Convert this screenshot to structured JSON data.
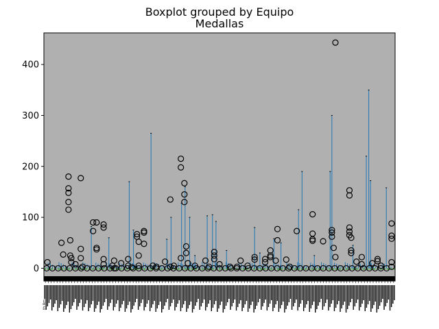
{
  "chart_data": {
    "type": "boxplot",
    "suptitle": "Boxplot grouped by Equipo",
    "title": "Medallas",
    "xlabel": "",
    "ylabel": "",
    "ylim": [
      -25,
      462
    ],
    "yticks": [
      0,
      100,
      200,
      300,
      400
    ],
    "grid": false,
    "background": "#b0b0b0",
    "box_color": "#1f77b4",
    "median_color": "#2ca02c",
    "flier_color": "#000000",
    "x_tick_labels_note": "hundreds of overlapping rotated team-name labels (illegible)",
    "legible_tick_fragment": "th Am",
    "whisker_peaks": [
      {
        "pos": 0.135,
        "value": 82
      },
      {
        "pos": 0.185,
        "value": 60
      },
      {
        "pos": 0.243,
        "value": 170
      },
      {
        "pos": 0.255,
        "value": 75
      },
      {
        "pos": 0.305,
        "value": 265
      },
      {
        "pos": 0.35,
        "value": 57
      },
      {
        "pos": 0.362,
        "value": 100
      },
      {
        "pos": 0.392,
        "value": 128
      },
      {
        "pos": 0.402,
        "value": 160
      },
      {
        "pos": 0.415,
        "value": 100
      },
      {
        "pos": 0.43,
        "value": 25
      },
      {
        "pos": 0.465,
        "value": 103
      },
      {
        "pos": 0.48,
        "value": 105
      },
      {
        "pos": 0.49,
        "value": 92
      },
      {
        "pos": 0.52,
        "value": 35
      },
      {
        "pos": 0.6,
        "value": 80
      },
      {
        "pos": 0.615,
        "value": 30
      },
      {
        "pos": 0.655,
        "value": 58
      },
      {
        "pos": 0.675,
        "value": 50
      },
      {
        "pos": 0.725,
        "value": 115
      },
      {
        "pos": 0.735,
        "value": 190
      },
      {
        "pos": 0.77,
        "value": 25
      },
      {
        "pos": 0.815,
        "value": 190
      },
      {
        "pos": 0.82,
        "value": 300
      },
      {
        "pos": 0.88,
        "value": 45
      },
      {
        "pos": 0.918,
        "value": 220
      },
      {
        "pos": 0.925,
        "value": 350
      },
      {
        "pos": 0.93,
        "value": 172
      },
      {
        "pos": 0.975,
        "value": 158
      }
    ],
    "outliers": [
      {
        "pos": 0.01,
        "value": 12
      },
      {
        "pos": 0.05,
        "value": 50
      },
      {
        "pos": 0.055,
        "value": 27
      },
      {
        "pos": 0.07,
        "value": 180
      },
      {
        "pos": 0.07,
        "value": 157
      },
      {
        "pos": 0.07,
        "value": 148
      },
      {
        "pos": 0.07,
        "value": 130
      },
      {
        "pos": 0.07,
        "value": 115
      },
      {
        "pos": 0.075,
        "value": 55
      },
      {
        "pos": 0.075,
        "value": 25
      },
      {
        "pos": 0.078,
        "value": 20
      },
      {
        "pos": 0.078,
        "value": 12
      },
      {
        "pos": 0.09,
        "value": 8
      },
      {
        "pos": 0.105,
        "value": 177
      },
      {
        "pos": 0.105,
        "value": 38
      },
      {
        "pos": 0.105,
        "value": 20
      },
      {
        "pos": 0.11,
        "value": 3
      },
      {
        "pos": 0.14,
        "value": 90
      },
      {
        "pos": 0.14,
        "value": 73
      },
      {
        "pos": 0.15,
        "value": 90
      },
      {
        "pos": 0.15,
        "value": 40
      },
      {
        "pos": 0.15,
        "value": 37
      },
      {
        "pos": 0.17,
        "value": 86
      },
      {
        "pos": 0.17,
        "value": 80
      },
      {
        "pos": 0.17,
        "value": 18
      },
      {
        "pos": 0.17,
        "value": 8
      },
      {
        "pos": 0.195,
        "value": 5
      },
      {
        "pos": 0.2,
        "value": 15
      },
      {
        "pos": 0.2,
        "value": 0
      },
      {
        "pos": 0.22,
        "value": 10
      },
      {
        "pos": 0.24,
        "value": 18
      },
      {
        "pos": 0.24,
        "value": 5
      },
      {
        "pos": 0.25,
        "value": 2
      },
      {
        "pos": 0.265,
        "value": 67
      },
      {
        "pos": 0.265,
        "value": 62
      },
      {
        "pos": 0.27,
        "value": 52
      },
      {
        "pos": 0.27,
        "value": 25
      },
      {
        "pos": 0.27,
        "value": 5
      },
      {
        "pos": 0.285,
        "value": 73
      },
      {
        "pos": 0.285,
        "value": 70
      },
      {
        "pos": 0.285,
        "value": 48
      },
      {
        "pos": 0.31,
        "value": 5
      },
      {
        "pos": 0.32,
        "value": 3
      },
      {
        "pos": 0.345,
        "value": 13
      },
      {
        "pos": 0.36,
        "value": 135
      },
      {
        "pos": 0.36,
        "value": 3
      },
      {
        "pos": 0.37,
        "value": 5
      },
      {
        "pos": 0.39,
        "value": 215
      },
      {
        "pos": 0.39,
        "value": 198
      },
      {
        "pos": 0.39,
        "value": 20
      },
      {
        "pos": 0.4,
        "value": 167
      },
      {
        "pos": 0.4,
        "value": 145
      },
      {
        "pos": 0.4,
        "value": 130
      },
      {
        "pos": 0.405,
        "value": 43
      },
      {
        "pos": 0.405,
        "value": 30
      },
      {
        "pos": 0.41,
        "value": 10
      },
      {
        "pos": 0.43,
        "value": 5
      },
      {
        "pos": 0.46,
        "value": 15
      },
      {
        "pos": 0.47,
        "value": 3
      },
      {
        "pos": 0.485,
        "value": 32
      },
      {
        "pos": 0.485,
        "value": 25
      },
      {
        "pos": 0.485,
        "value": 18
      },
      {
        "pos": 0.5,
        "value": 8
      },
      {
        "pos": 0.53,
        "value": 3
      },
      {
        "pos": 0.55,
        "value": 3
      },
      {
        "pos": 0.56,
        "value": 15
      },
      {
        "pos": 0.58,
        "value": 5
      },
      {
        "pos": 0.6,
        "value": 22
      },
      {
        "pos": 0.6,
        "value": 17
      },
      {
        "pos": 0.63,
        "value": 18
      },
      {
        "pos": 0.63,
        "value": 12
      },
      {
        "pos": 0.645,
        "value": 35
      },
      {
        "pos": 0.645,
        "value": 25
      },
      {
        "pos": 0.645,
        "value": 22
      },
      {
        "pos": 0.66,
        "value": 15
      },
      {
        "pos": 0.665,
        "value": 77
      },
      {
        "pos": 0.665,
        "value": 55
      },
      {
        "pos": 0.69,
        "value": 17
      },
      {
        "pos": 0.7,
        "value": 3
      },
      {
        "pos": 0.72,
        "value": 73
      },
      {
        "pos": 0.765,
        "value": 106
      },
      {
        "pos": 0.765,
        "value": 68
      },
      {
        "pos": 0.765,
        "value": 57
      },
      {
        "pos": 0.765,
        "value": 54
      },
      {
        "pos": 0.795,
        "value": 53
      },
      {
        "pos": 0.82,
        "value": 75
      },
      {
        "pos": 0.82,
        "value": 70
      },
      {
        "pos": 0.82,
        "value": 62
      },
      {
        "pos": 0.83,
        "value": 443
      },
      {
        "pos": 0.825,
        "value": 40
      },
      {
        "pos": 0.83,
        "value": 22
      },
      {
        "pos": 0.87,
        "value": 153
      },
      {
        "pos": 0.87,
        "value": 143
      },
      {
        "pos": 0.87,
        "value": 80
      },
      {
        "pos": 0.87,
        "value": 72
      },
      {
        "pos": 0.87,
        "value": 65
      },
      {
        "pos": 0.875,
        "value": 60
      },
      {
        "pos": 0.875,
        "value": 35
      },
      {
        "pos": 0.875,
        "value": 30
      },
      {
        "pos": 0.89,
        "value": 13
      },
      {
        "pos": 0.905,
        "value": 22
      },
      {
        "pos": 0.905,
        "value": 8
      },
      {
        "pos": 0.935,
        "value": 10
      },
      {
        "pos": 0.95,
        "value": 18
      },
      {
        "pos": 0.95,
        "value": 14
      },
      {
        "pos": 0.96,
        "value": 5
      },
      {
        "pos": 0.99,
        "value": 88
      },
      {
        "pos": 0.99,
        "value": 64
      },
      {
        "pos": 0.99,
        "value": 58
      },
      {
        "pos": 0.99,
        "value": 12
      },
      {
        "pos": 0.99,
        "value": 3
      }
    ]
  }
}
